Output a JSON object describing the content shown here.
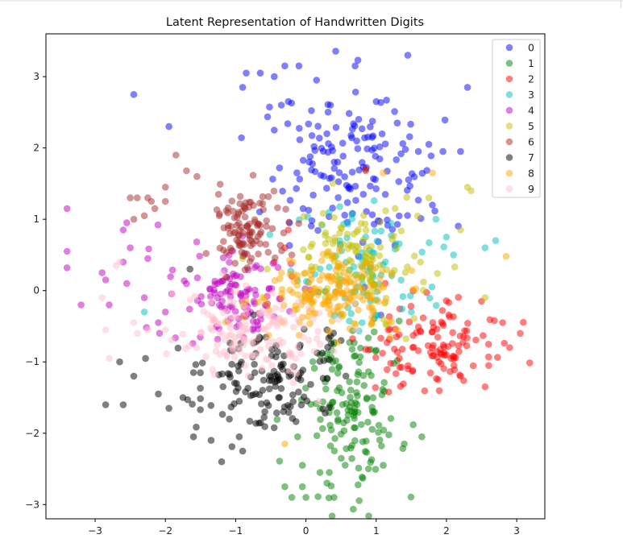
{
  "chart_data": {
    "type": "scatter",
    "title": "Latent Representation of Handwritten Digits",
    "xlabel": "",
    "ylabel": "",
    "xlim": [
      -3.7,
      3.4
    ],
    "ylim": [
      -3.2,
      3.6
    ],
    "xticks": [
      -3,
      -2,
      -1,
      0,
      1,
      2,
      3
    ],
    "yticks": [
      -3,
      -2,
      -1,
      0,
      1,
      2,
      3
    ],
    "xtick_labels": [
      "−3",
      "−2",
      "−1",
      "0",
      "1",
      "2",
      "3"
    ],
    "ytick_labels": [
      "−3",
      "−2",
      "−1",
      "0",
      "1",
      "2",
      "3"
    ],
    "grid": false,
    "marker_alpha": 0.5,
    "legend": {
      "placement": "top-right",
      "entries": [
        "0",
        "1",
        "2",
        "3",
        "4",
        "5",
        "6",
        "7",
        "8",
        "9"
      ]
    },
    "series": [
      {
        "name": "0",
        "color": "#0000ff",
        "center": [
          0.55,
          1.65
        ],
        "spread": [
          0.55,
          0.55
        ],
        "n": 150,
        "points": [
          [
            -0.85,
            3.05
          ],
          [
            -0.65,
            3.05
          ],
          [
            -0.9,
            2.85
          ],
          [
            -0.45,
            3.0
          ],
          [
            -0.3,
            3.15
          ],
          [
            -0.1,
            3.15
          ],
          [
            0.15,
            2.95
          ],
          [
            0.7,
            3.15
          ],
          [
            1.45,
            3.3
          ],
          [
            2.3,
            2.85
          ],
          [
            -2.45,
            2.75
          ],
          [
            -1.95,
            2.3
          ],
          [
            -0.35,
            2.6
          ],
          [
            -0.25,
            2.65
          ],
          [
            1.75,
            2.05
          ],
          [
            1.95,
            1.95
          ],
          [
            2.2,
            1.95
          ],
          [
            1.6,
            1.95
          ],
          [
            1.0,
            2.65
          ],
          [
            1.3,
            2.35
          ],
          [
            -0.45,
            2.25
          ],
          [
            0.35,
            2.6
          ],
          [
            0.75,
            2.4
          ],
          [
            1.8,
            1.2
          ]
        ]
      },
      {
        "name": "1",
        "color": "#008000",
        "center": [
          0.65,
          -1.55
        ],
        "spread": [
          0.35,
          0.6
        ],
        "n": 150,
        "points": [
          [
            -0.3,
            -2.75
          ],
          [
            -0.2,
            -2.9
          ],
          [
            -0.05,
            -2.75
          ],
          [
            0.0,
            -2.9
          ],
          [
            0.4,
            -2.9
          ],
          [
            -0.05,
            -2.45
          ],
          [
            0.2,
            -2.55
          ],
          [
            0.3,
            -2.7
          ],
          [
            1.65,
            -2.05
          ],
          [
            1.4,
            -2.15
          ],
          [
            1.1,
            -2.45
          ]
        ]
      },
      {
        "name": "2",
        "color": "#ff0000",
        "center": [
          1.85,
          -0.85
        ],
        "spread": [
          0.45,
          0.3
        ],
        "n": 120,
        "points": [
          [
            -0.25,
            0.85
          ],
          [
            -0.3,
            0.6
          ],
          [
            -0.45,
            0.4
          ],
          [
            -0.2,
            0.2
          ],
          [
            2.55,
            -1.35
          ],
          [
            2.9,
            -0.8
          ],
          [
            3.05,
            -0.6
          ],
          [
            2.8,
            -0.45
          ],
          [
            2.5,
            -0.15
          ],
          [
            2.6,
            -1.05
          ],
          [
            2.2,
            -1.2
          ],
          [
            0.85,
            1.7
          ]
        ]
      },
      {
        "name": "3",
        "color": "#00bfbf",
        "center": [
          0.85,
          0.3
        ],
        "spread": [
          0.45,
          0.4
        ],
        "n": 90,
        "points": [
          [
            2.55,
            0.6
          ],
          [
            2.7,
            0.7
          ],
          [
            2.0,
            0.75
          ],
          [
            1.85,
            1.0
          ],
          [
            -2.3,
            -0.3
          ],
          [
            0.8,
            -0.45
          ],
          [
            1.5,
            -0.3
          ],
          [
            2.1,
            0.5
          ]
        ]
      },
      {
        "name": "4",
        "color": "#bf00bf",
        "center": [
          -1.05,
          -0.05
        ],
        "spread": [
          0.45,
          0.3
        ],
        "n": 120,
        "points": [
          [
            -3.4,
            1.15
          ],
          [
            -3.4,
            0.55
          ],
          [
            -3.4,
            0.32
          ],
          [
            -3.2,
            -0.2
          ],
          [
            -2.9,
            0.25
          ],
          [
            -2.85,
            0.15
          ],
          [
            -2.8,
            -0.2
          ],
          [
            -2.6,
            0.85
          ],
          [
            -2.55,
            0.95
          ],
          [
            -2.5,
            0.6
          ],
          [
            -2.6,
            0.4
          ],
          [
            -2.25,
            0.45
          ],
          [
            -2.55,
            0.1
          ],
          [
            -2.3,
            -0.1
          ],
          [
            -2.0,
            -0.3
          ],
          [
            -2.1,
            -0.45
          ]
        ]
      },
      {
        "name": "5",
        "color": "#bfbf00",
        "center": [
          0.85,
          0.45
        ],
        "spread": [
          0.5,
          0.45
        ],
        "n": 130,
        "points": [
          [
            2.3,
            1.45
          ],
          [
            2.2,
            0.85
          ],
          [
            2.55,
            -0.1
          ],
          [
            2.35,
            1.4
          ],
          [
            1.75,
            1.3
          ],
          [
            -0.9,
            0.45
          ],
          [
            -0.55,
            0.3
          ]
        ]
      },
      {
        "name": "6",
        "color": "#a52a2a",
        "center": [
          -0.85,
          0.85
        ],
        "spread": [
          0.25,
          0.3
        ],
        "n": 110,
        "points": [
          [
            -1.85,
            1.9
          ],
          [
            -1.7,
            1.68
          ],
          [
            -1.55,
            1.6
          ],
          [
            -2.0,
            1.45
          ],
          [
            -2.25,
            1.3
          ],
          [
            -2.4,
            1.3
          ],
          [
            -2.5,
            1.3
          ],
          [
            -2.0,
            1.25
          ],
          [
            -2.2,
            1.25
          ],
          [
            -2.15,
            1.15
          ],
          [
            -2.3,
            1.05
          ],
          [
            -2.45,
            1.0
          ],
          [
            0.85,
            1.68
          ],
          [
            -0.2,
            0.5
          ]
        ]
      },
      {
        "name": "7",
        "color": "#000000",
        "center": [
          -0.55,
          -1.25
        ],
        "spread": [
          0.5,
          0.35
        ],
        "n": 140,
        "points": [
          [
            -2.85,
            -1.6
          ],
          [
            -2.6,
            -1.6
          ],
          [
            -2.65,
            -1.0
          ],
          [
            -2.45,
            -1.2
          ],
          [
            -1.2,
            -2.4
          ],
          [
            -1.35,
            -2.1
          ],
          [
            -0.9,
            -2.25
          ],
          [
            -0.95,
            -2.05
          ],
          [
            -1.6,
            -2.05
          ],
          [
            -1.95,
            -1.65
          ],
          [
            -2.1,
            -1.45
          ],
          [
            -1.75,
            -1.5
          ],
          [
            -1.6,
            -1.15
          ],
          [
            0.3,
            -0.55
          ],
          [
            0.5,
            -0.7
          ],
          [
            -1.65,
            0.3
          ]
        ]
      },
      {
        "name": "8",
        "color": "#ffa500",
        "center": [
          0.35,
          -0.05
        ],
        "spread": [
          0.45,
          0.25
        ],
        "n": 170,
        "points": [
          [
            2.85,
            0.48
          ],
          [
            1.8,
            1.65
          ],
          [
            -0.35,
            0.25
          ],
          [
            1.3,
            -0.55
          ],
          [
            -0.3,
            -2.15
          ],
          [
            1.1,
            1.65
          ]
        ]
      },
      {
        "name": "9",
        "color": "#ffc0cb",
        "center": [
          -0.8,
          -0.55
        ],
        "spread": [
          0.5,
          0.3
        ],
        "n": 140,
        "points": [
          [
            -2.7,
            0.35
          ],
          [
            -2.65,
            0.4
          ],
          [
            -2.85,
            -0.55
          ],
          [
            -2.8,
            -0.95
          ],
          [
            -2.9,
            -0.1
          ],
          [
            -2.45,
            -0.45
          ],
          [
            -2.0,
            -0.55
          ],
          [
            -2.25,
            -0.55
          ],
          [
            -2.4,
            -0.6
          ],
          [
            -1.9,
            -0.05
          ],
          [
            0.2,
            -0.75
          ],
          [
            0.4,
            -0.85
          ]
        ]
      }
    ]
  }
}
